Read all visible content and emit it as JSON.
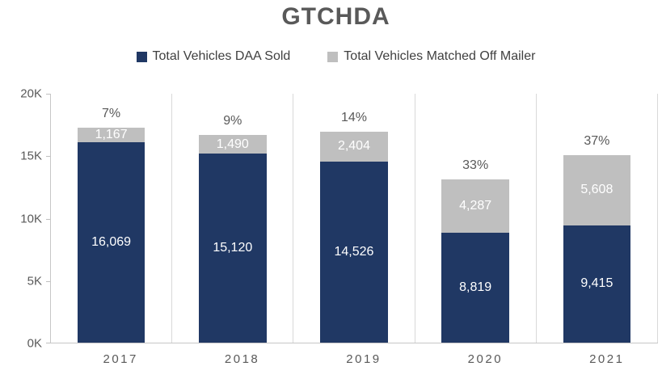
{
  "chart_data": {
    "type": "bar",
    "stacked": true,
    "title": "GTCHDA",
    "categories": [
      "2017",
      "2018",
      "2019",
      "2020",
      "2021"
    ],
    "series": [
      {
        "name": "Total Vehicles DAA Sold",
        "color": "#203864",
        "values": [
          16069,
          15120,
          14526,
          8819,
          9415
        ],
        "labels": [
          "16,069",
          "15,120",
          "14,526",
          "8,819",
          "9,415"
        ]
      },
      {
        "name": "Total Vehicles Matched Off Mailer",
        "color": "#bfbfbf",
        "values": [
          1167,
          1490,
          2404,
          4287,
          5608
        ],
        "labels": [
          "1,167",
          "1,490",
          "2,404",
          "4,287",
          "5,608"
        ]
      }
    ],
    "pct_labels": [
      "7%",
      "9%",
      "14%",
      "33%",
      "37%"
    ],
    "y_ticks": [
      {
        "label": "20K",
        "value": 20000
      },
      {
        "label": "15K",
        "value": 15000
      },
      {
        "label": "10K",
        "value": 10000
      },
      {
        "label": "5K",
        "value": 5000
      },
      {
        "label": "0K",
        "value": 0
      }
    ],
    "ylim": [
      0,
      20000
    ],
    "xlabel": "",
    "ylabel": "",
    "grid": "vertical-category-separators",
    "legend_position": "top"
  }
}
